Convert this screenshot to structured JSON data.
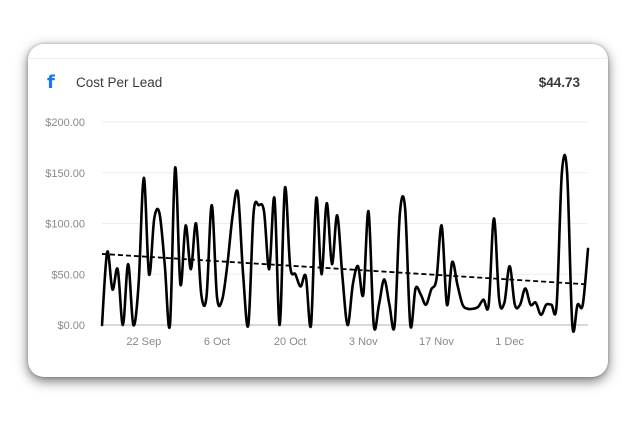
{
  "widget": {
    "icon": "facebook-icon",
    "icon_glyph": "f",
    "title": "Cost Per Lead",
    "total": "$44.73"
  },
  "colors": {
    "brand": "#1877f2",
    "line": "#000000",
    "grid": "#eeeeee",
    "axis_text": "#888888"
  },
  "chart_data": {
    "type": "line",
    "title": "",
    "xlabel": "",
    "ylabel": "",
    "ylim": [
      0,
      200
    ],
    "grid": true,
    "legend": "none",
    "y_ticks": [
      "$0.00",
      "$50.00",
      "$100.00",
      "$150.00",
      "$200.00"
    ],
    "y_tick_values": [
      0,
      50,
      100,
      150,
      200
    ],
    "x_ticks": [
      "22 Sep",
      "6 Oct",
      "20 Oct",
      "3 Nov",
      "17 Nov",
      "1 Dec"
    ],
    "x_tick_dates": [
      "2023-09-22",
      "2023-10-06",
      "2023-10-20",
      "2023-11-03",
      "2023-11-17",
      "2023-12-01"
    ],
    "x_range": [
      "2023-09-14",
      "2023-12-16"
    ],
    "series": [
      {
        "style": "solid",
        "x": [
          "2023-09-14",
          "2023-09-15",
          "2023-09-16",
          "2023-09-17",
          "2023-09-18",
          "2023-09-19",
          "2023-09-20",
          "2023-09-21",
          "2023-09-22",
          "2023-09-23",
          "2023-09-24",
          "2023-09-25",
          "2023-09-26",
          "2023-09-27",
          "2023-09-28",
          "2023-09-29",
          "2023-09-30",
          "2023-10-01",
          "2023-10-02",
          "2023-10-03",
          "2023-10-04",
          "2023-10-05",
          "2023-10-06",
          "2023-10-07",
          "2023-10-08",
          "2023-10-09",
          "2023-10-10",
          "2023-10-11",
          "2023-10-12",
          "2023-10-13",
          "2023-10-14",
          "2023-10-15",
          "2023-10-16",
          "2023-10-17",
          "2023-10-18",
          "2023-10-19",
          "2023-10-20",
          "2023-10-21",
          "2023-10-22",
          "2023-10-23",
          "2023-10-24",
          "2023-10-25",
          "2023-10-26",
          "2023-10-27",
          "2023-10-28",
          "2023-10-29",
          "2023-10-30",
          "2023-10-31",
          "2023-11-01",
          "2023-11-02",
          "2023-11-03",
          "2023-11-04",
          "2023-11-05",
          "2023-11-06",
          "2023-11-07",
          "2023-11-08",
          "2023-11-09",
          "2023-11-10",
          "2023-11-11",
          "2023-11-12",
          "2023-11-13",
          "2023-11-14",
          "2023-11-15",
          "2023-11-16",
          "2023-11-17",
          "2023-11-18",
          "2023-11-19",
          "2023-11-20",
          "2023-11-21",
          "2023-11-22",
          "2023-11-23",
          "2023-11-24",
          "2023-11-25",
          "2023-11-26",
          "2023-11-27",
          "2023-11-28",
          "2023-11-29",
          "2023-11-30",
          "2023-12-01",
          "2023-12-02",
          "2023-12-03",
          "2023-12-04",
          "2023-12-05",
          "2023-12-06",
          "2023-12-07",
          "2023-12-08",
          "2023-12-09",
          "2023-12-10",
          "2023-12-11",
          "2023-12-12",
          "2023-12-13",
          "2023-12-14",
          "2023-12-15",
          "2023-12-16"
        ],
        "values": [
          0,
          72,
          35,
          55,
          0,
          60,
          0,
          40,
          145,
          50,
          105,
          110,
          60,
          0,
          155,
          40,
          98,
          55,
          100,
          30,
          28,
          118,
          28,
          25,
          60,
          108,
          130,
          50,
          0,
          110,
          118,
          112,
          55,
          125,
          0,
          135,
          58,
          50,
          38,
          48,
          0,
          125,
          50,
          120,
          60,
          108,
          48,
          0,
          40,
          58,
          30,
          112,
          0,
          20,
          45,
          20,
          0,
          110,
          115,
          0,
          36,
          30,
          20,
          35,
          45,
          98,
          20,
          62,
          40,
          20,
          16,
          16,
          18,
          25,
          20,
          105,
          25,
          22,
          58,
          20,
          20,
          36,
          20,
          22,
          10,
          20,
          20,
          20,
          150,
          150,
          0,
          20,
          20,
          75
        ]
      },
      {
        "style": "dashed",
        "x": [
          "2023-09-14",
          "2023-12-16"
        ],
        "values": [
          70,
          40
        ]
      }
    ]
  }
}
